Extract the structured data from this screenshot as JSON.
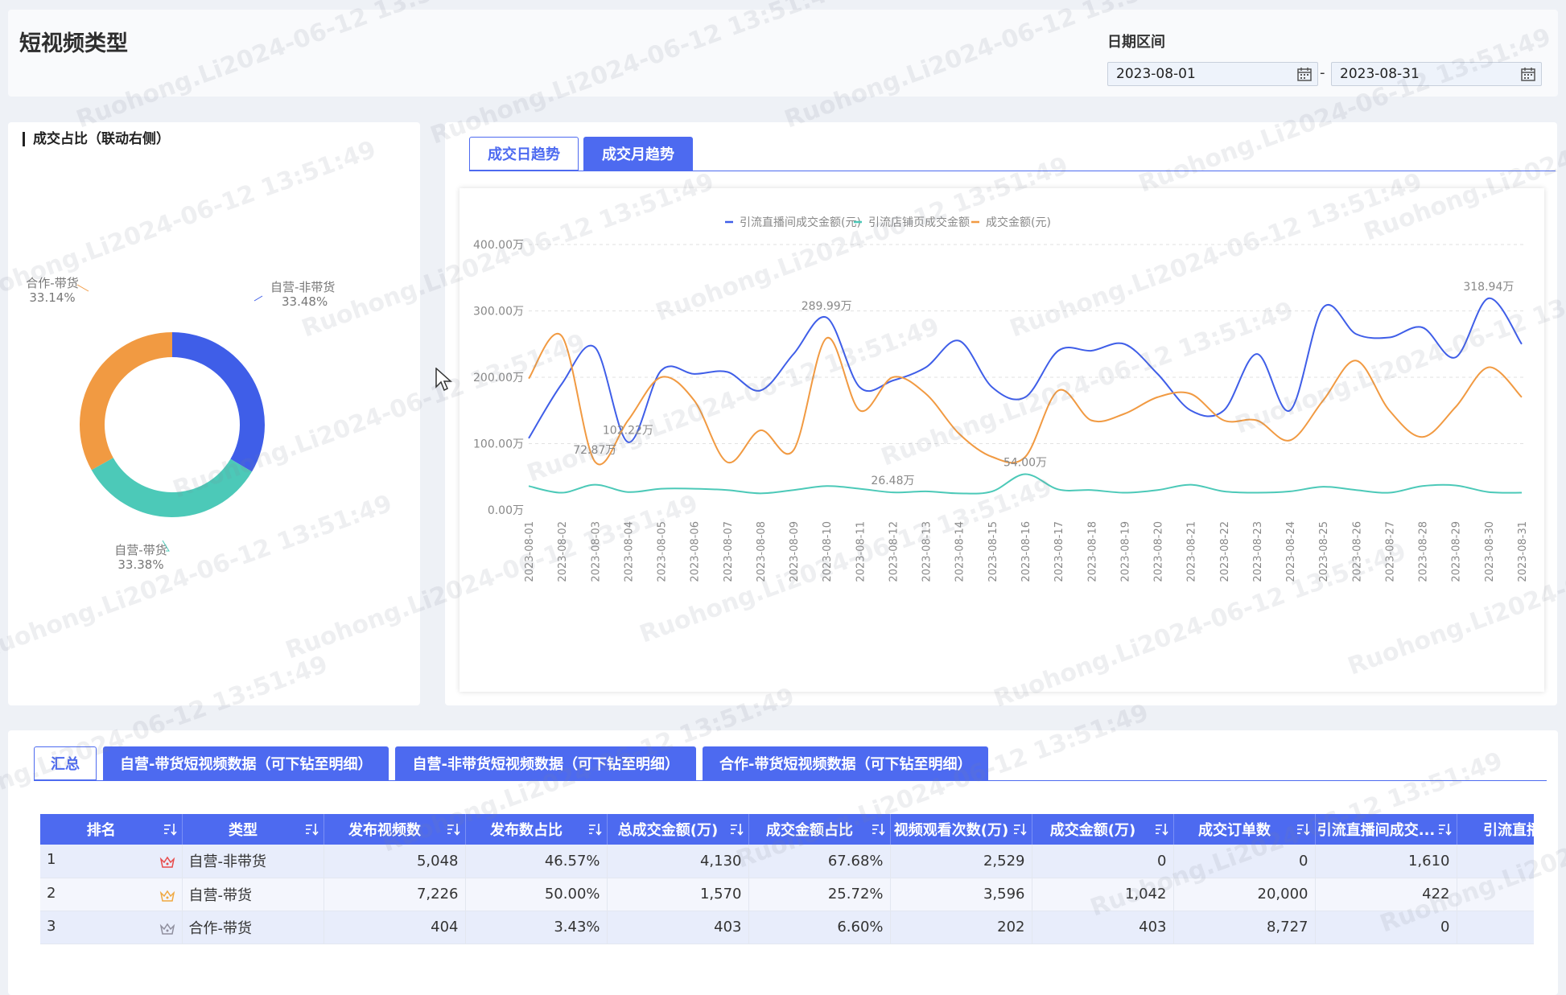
{
  "header": {
    "title": "短视频类型",
    "date_label": "日期区间",
    "start_date": "2023-08-01",
    "end_date": "2023-08-31",
    "separator": "-"
  },
  "pie": {
    "title": "成交占比（联动右侧）",
    "slices": [
      {
        "name": "自营-非带货",
        "label": "33.48%",
        "value": 33.48,
        "color": "#3f5ee8"
      },
      {
        "name": "自营-带货",
        "label": "33.38%",
        "value": 33.38,
        "color": "#4cc9b8"
      },
      {
        "name": "合作-带货",
        "label": "33.14%",
        "value": 33.14,
        "color": "#f19a42"
      }
    ]
  },
  "trend": {
    "tabs": [
      {
        "label": "成交日趋势",
        "active": false
      },
      {
        "label": "成交月趋势",
        "active": true
      }
    ]
  },
  "chart_data": {
    "type": "line",
    "x": [
      "2023-08-01",
      "2023-08-02",
      "2023-08-03",
      "2023-08-04",
      "2023-08-05",
      "2023-08-06",
      "2023-08-07",
      "2023-08-08",
      "2023-08-09",
      "2023-08-10",
      "2023-08-11",
      "2023-08-12",
      "2023-08-13",
      "2023-08-14",
      "2023-08-15",
      "2023-08-16",
      "2023-08-17",
      "2023-08-18",
      "2023-08-19",
      "2023-08-20",
      "2023-08-21",
      "2023-08-22",
      "2023-08-23",
      "2023-08-24",
      "2023-08-25",
      "2023-08-26",
      "2023-08-27",
      "2023-08-28",
      "2023-08-29",
      "2023-08-30",
      "2023-08-31"
    ],
    "series": [
      {
        "name": "引流直播间成交金额(元)",
        "color": "#3f5ee8",
        "values": [
          108,
          190,
          245,
          102.22,
          210,
          205,
          208,
          180,
          235,
          289.99,
          185,
          195,
          215,
          255,
          185,
          170,
          240,
          240,
          250,
          205,
          150,
          150,
          235,
          150,
          305,
          265,
          260,
          275,
          230,
          318.94,
          250
        ]
      },
      {
        "name": "引流店铺页成交金额",
        "color": "#4cc9b8",
        "values": [
          36,
          26,
          38,
          27,
          32,
          32,
          30,
          25,
          30,
          36,
          32,
          26.48,
          28,
          25,
          28,
          54.0,
          31,
          30,
          26,
          30,
          38,
          28,
          26,
          28,
          35,
          30,
          26,
          36,
          37,
          27,
          26
        ]
      },
      {
        "name": "成交金额(元)",
        "color": "#f19a42",
        "values": [
          198,
          262,
          72.87,
          135,
          200,
          165,
          72,
          120,
          90,
          259,
          150,
          200,
          175,
          115,
          80,
          80,
          180,
          135,
          145,
          170,
          175,
          135,
          135,
          105,
          165,
          225,
          150,
          110,
          155,
          215,
          170
        ]
      }
    ],
    "annotations": [
      {
        "series": 0,
        "index": 9,
        "label": "289.99万"
      },
      {
        "series": 0,
        "index": 3,
        "label": "102.22万"
      },
      {
        "series": 0,
        "index": 29,
        "label": "318.94万"
      },
      {
        "series": 2,
        "index": 2,
        "label": "72.87万"
      },
      {
        "series": 1,
        "index": 15,
        "label": "54.00万"
      },
      {
        "series": 1,
        "index": 11,
        "label": "26.48万"
      }
    ],
    "yticks": [
      "0.00万",
      "100.00万",
      "200.00万",
      "300.00万",
      "400.00万"
    ],
    "ylim": [
      0,
      400
    ],
    "legend_position": "top"
  },
  "table": {
    "tabs": [
      {
        "label": "汇总",
        "selected": true
      },
      {
        "label": "自营-带货短视频数据（可下钻至明细）",
        "selected": false
      },
      {
        "label": "自营-非带货短视频数据（可下钻至明细）",
        "selected": false
      },
      {
        "label": "合作-带货短视频数据（可下钻至明细）",
        "selected": false
      }
    ],
    "columns": [
      "排名",
      "类型",
      "发布视频数",
      "发布数占比",
      "总成交金额(万)",
      "成交金额占比",
      "视频观看次数(万)",
      "成交金额(万)",
      "成交订单数",
      "引流直播间成交...",
      "引流直播间"
    ],
    "rows": [
      {
        "rank": "1",
        "crown_color": "#e84a4a",
        "cells": [
          "自营-非带货",
          "5,048",
          "46.57%",
          "4,130",
          "67.68%",
          "2,529",
          "0",
          "0",
          "1,610",
          ""
        ]
      },
      {
        "rank": "2",
        "crown_color": "#f0a840",
        "cells": [
          "自营-带货",
          "7,226",
          "50.00%",
          "1,570",
          "25.72%",
          "3,596",
          "1,042",
          "20,000",
          "422",
          ""
        ]
      },
      {
        "rank": "3",
        "crown_color": "#8f8f9e",
        "cells": [
          "合作-带货",
          "404",
          "3.43%",
          "403",
          "6.60%",
          "202",
          "403",
          "8,727",
          "0",
          ""
        ]
      }
    ]
  },
  "watermark": "Ruohong.Li2024-06-12 13:51:49"
}
